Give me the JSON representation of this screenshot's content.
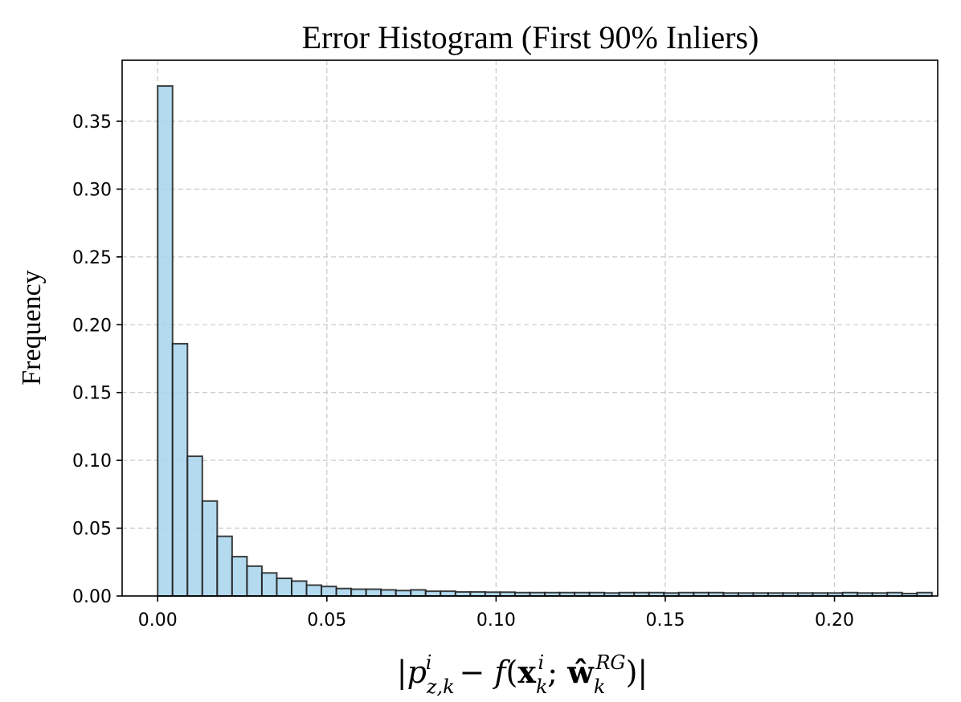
{
  "chart_data": {
    "type": "bar",
    "title": "Error Histogram (First 90% Inliers)",
    "ylabel": "Frequency",
    "xlabel": "|p_{z,k}^i − f(x_k^i; ŵ_k^{RG})|",
    "xlim": [
      -0.0105,
      0.2305
    ],
    "ylim": [
      0,
      0.395
    ],
    "xticks": [
      0.0,
      0.05,
      0.1,
      0.15,
      0.2
    ],
    "xtick_labels": [
      "0.00",
      "0.05",
      "0.10",
      "0.15",
      "0.20"
    ],
    "yticks": [
      0.0,
      0.05,
      0.1,
      0.15,
      0.2,
      0.25,
      0.3,
      0.35
    ],
    "ytick_labels": [
      "0.00",
      "0.05",
      "0.10",
      "0.15",
      "0.20",
      "0.25",
      "0.30",
      "0.35"
    ],
    "grid": true,
    "bin_start": 0.0,
    "bin_width": 0.0044,
    "values": [
      0.376,
      0.186,
      0.103,
      0.07,
      0.044,
      0.029,
      0.022,
      0.017,
      0.013,
      0.011,
      0.008,
      0.007,
      0.0055,
      0.005,
      0.005,
      0.0045,
      0.004,
      0.0045,
      0.0035,
      0.0035,
      0.003,
      0.003,
      0.0028,
      0.0028,
      0.0025,
      0.0025,
      0.0025,
      0.0025,
      0.0025,
      0.0025,
      0.0022,
      0.0025,
      0.0025,
      0.0025,
      0.0022,
      0.0025,
      0.0025,
      0.0025,
      0.0022,
      0.0022,
      0.0022,
      0.0022,
      0.0022,
      0.0022,
      0.0022,
      0.0022,
      0.0025,
      0.0022,
      0.0022,
      0.0025,
      0.0018,
      0.0025
    ],
    "colors": {
      "bar_fill": "#a6d3ec",
      "bar_edge": "#1f1f1f",
      "grid": "#cccccc"
    }
  }
}
